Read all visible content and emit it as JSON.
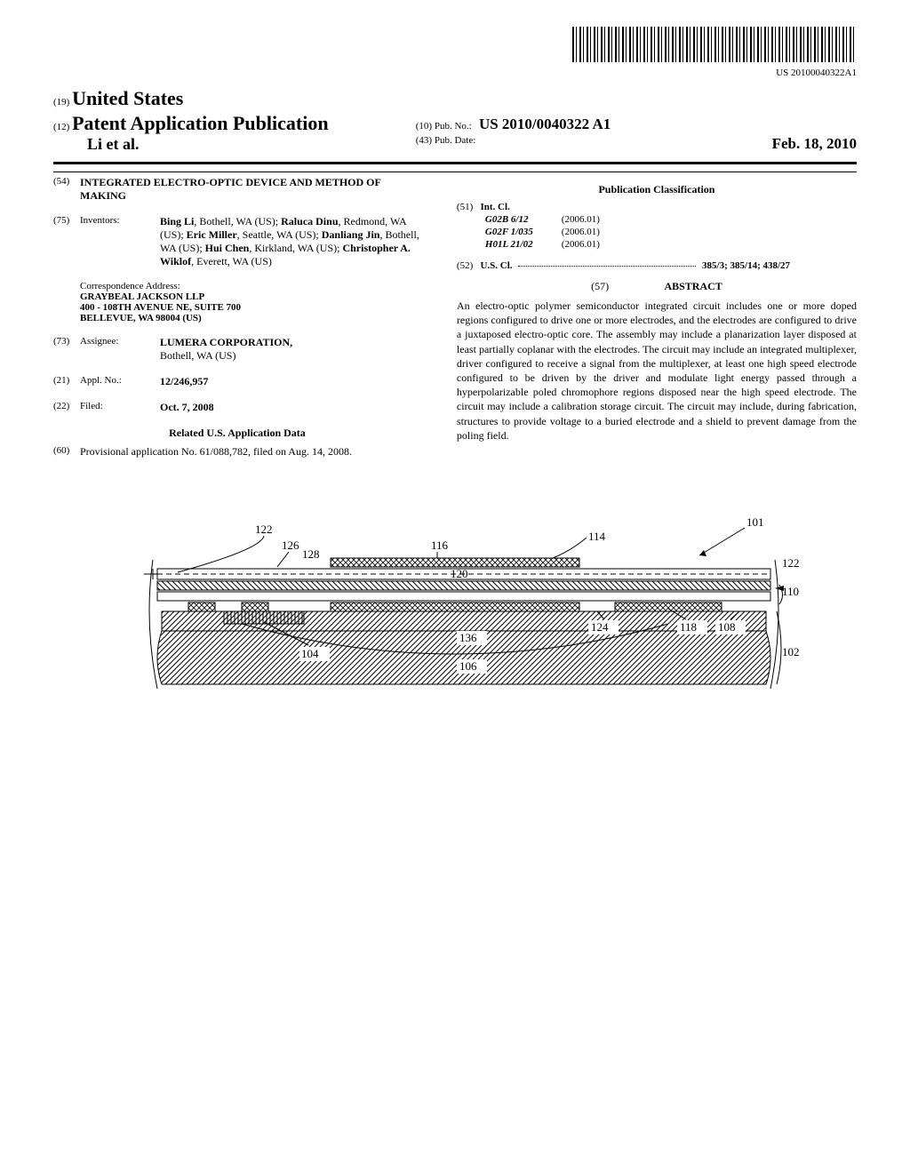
{
  "barcode_label": "US 20100040322A1",
  "header": {
    "code19": "(19)",
    "country": "United States",
    "code12": "(12)",
    "pub_type": "Patent Application Publication",
    "authors_short": "Li et al.",
    "code10": "(10)",
    "pub_no_label": "Pub. No.:",
    "pub_no": "US 2010/0040322 A1",
    "code43": "(43)",
    "pub_date_label": "Pub. Date:",
    "pub_date": "Feb. 18, 2010"
  },
  "left": {
    "code54": "(54)",
    "title": "INTEGRATED ELECTRO-OPTIC DEVICE AND METHOD OF MAKING",
    "code75": "(75)",
    "inventors_label": "Inventors:",
    "inventors": "Bing Li, Bothell, WA (US); Raluca Dinu, Redmond, WA (US); Eric Miller, Seattle, WA (US); Danliang Jin, Bothell, WA (US); Hui Chen, Kirkland, WA (US); Christopher A. Wiklof, Everett, WA (US)",
    "corr_label": "Correspondence Address:",
    "corr_firm": "GRAYBEAL JACKSON LLP",
    "corr_addr1": "400 - 108TH AVENUE NE, SUITE 700",
    "corr_addr2": "BELLEVUE, WA 98004 (US)",
    "code73": "(73)",
    "assignee_label": "Assignee:",
    "assignee_name": "LUMERA CORPORATION,",
    "assignee_loc": "Bothell, WA (US)",
    "code21": "(21)",
    "appl_no_label": "Appl. No.:",
    "appl_no": "12/246,957",
    "code22": "(22)",
    "filed_label": "Filed:",
    "filed_date": "Oct. 7, 2008",
    "related_title": "Related U.S. Application Data",
    "code60": "(60)",
    "provisional": "Provisional application No. 61/088,782, filed on Aug. 14, 2008."
  },
  "right": {
    "pub_class_title": "Publication Classification",
    "code51": "(51)",
    "int_cl_label": "Int. Cl.",
    "int_cl_rows": [
      {
        "code": "G02B 6/12",
        "year": "(2006.01)"
      },
      {
        "code": "G02F 1/035",
        "year": "(2006.01)"
      },
      {
        "code": "H01L 21/02",
        "year": "(2006.01)"
      }
    ],
    "code52": "(52)",
    "us_cl_label": "U.S. Cl.",
    "us_cl": "385/3; 385/14; 438/27",
    "code57": "(57)",
    "abstract_title": "ABSTRACT",
    "abstract_text": "An electro-optic polymer semiconductor integrated circuit includes one or more doped regions configured to drive one or more electrodes, and the electrodes are configured to drive a juxtaposed electro-optic core. The assembly may include a planarization layer disposed at least partially coplanar with the electrodes. The circuit may include an integrated multiplexer, driver configured to receive a signal from the multiplexer, at least one high speed electrode configured to be driven by the driver and modulate light energy passed through a hyperpolarizable poled chromophore regions disposed near the high speed electrode. The circuit may include a calibration storage circuit. The circuit may include, during fabrication, structures to provide voltage to a buried electrode and a shield to prevent damage from the poling field."
  },
  "figure": {
    "labels": [
      "122",
      "126",
      "128",
      "116",
      "120",
      "114",
      "101",
      "122",
      "110",
      "104",
      "136",
      "106",
      "124",
      "118",
      "108",
      "102"
    ],
    "colors": {
      "stroke": "#000000",
      "fill": "#ffffff"
    }
  }
}
